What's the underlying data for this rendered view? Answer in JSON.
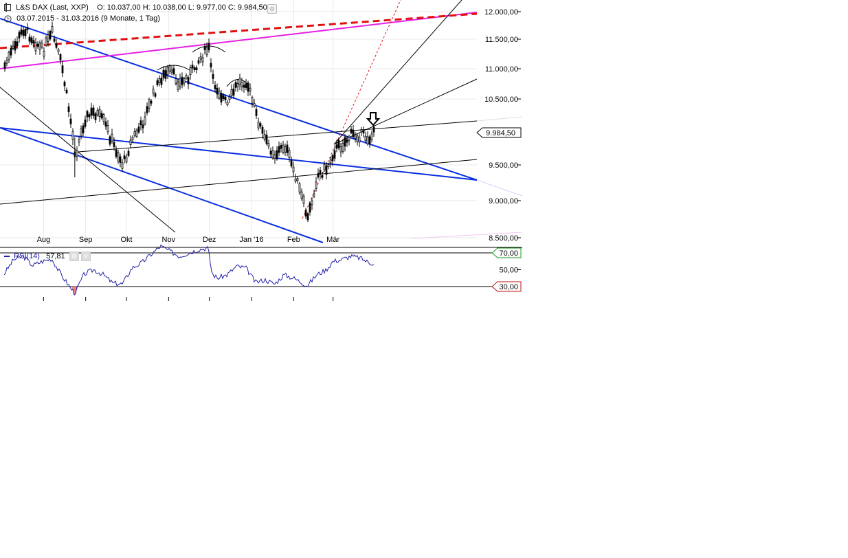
{
  "header": {
    "instrument": "L&S DAX (Last, XXP)",
    "ohlc": "O: 10.037,00  H: 10.038,00  L: 9.977,00  C: 9.984,50",
    "range": "03.07.2015 - 31.03.2016 (9 Monate, 1 Tag)"
  },
  "rsi_panel": {
    "name": "RSI(14)",
    "value": "57,81",
    "axis_labels": [
      "70,00",
      "50,00",
      "30,00"
    ]
  },
  "colors": {
    "candle": "#000000",
    "trend_blue": "#0a2ee0",
    "trend_magenta": "#e61ee6",
    "resistance_red": "#e01010",
    "rsi_line": "#1f1fa8",
    "rsi_fill": "#f08080",
    "grid": "#e8e8e8"
  },
  "icons": [
    "clock-icon",
    "gear-icon",
    "arrow-down-marker-icon"
  ],
  "chart_data": [
    {
      "type": "candlestick",
      "title": "L&S DAX (Last, XXP)",
      "price_labels": [
        "12.000,00",
        "11.500,00",
        "11.000,00",
        "10.500,00",
        "9.500,00",
        "9.000,00",
        "8.500,00"
      ],
      "y_ticks": [
        12000,
        11500,
        11000,
        10500,
        9500,
        9000,
        8500
      ],
      "x_tick_labels": [
        "Aug",
        "Sep",
        "Okt",
        "Nov",
        "Dez",
        "Jan '16",
        "Feb",
        "Mär"
      ],
      "ylim": [
        8500,
        12000
      ],
      "last_price_label": "9.984,50",
      "last_price": 9984.5,
      "series_outline": [
        [
          "2015-07-03",
          11050
        ],
        [
          "2015-07-10",
          11350
        ],
        [
          "2015-07-17",
          11700
        ],
        [
          "2015-07-24",
          11500
        ],
        [
          "2015-07-31",
          11300
        ],
        [
          "2015-08-07",
          11600
        ],
        [
          "2015-08-14",
          11050
        ],
        [
          "2015-08-21",
          10100
        ],
        [
          "2015-08-24",
          9650
        ],
        [
          "2015-08-31",
          10200
        ],
        [
          "2015-09-07",
          10300
        ],
        [
          "2015-09-14",
          10150
        ],
        [
          "2015-09-21",
          9800
        ],
        [
          "2015-09-28",
          9500
        ],
        [
          "2015-10-05",
          9900
        ],
        [
          "2015-10-12",
          10100
        ],
        [
          "2015-10-19",
          10500
        ],
        [
          "2015-10-26",
          10850
        ],
        [
          "2015-11-02",
          10950
        ],
        [
          "2015-11-09",
          10750
        ],
        [
          "2015-11-16",
          10900
        ],
        [
          "2015-11-23",
          11150
        ],
        [
          "2015-11-30",
          11350
        ],
        [
          "2015-12-03",
          10800
        ],
        [
          "2015-12-07",
          10650
        ],
        [
          "2015-12-14",
          10400
        ],
        [
          "2015-12-21",
          10750
        ],
        [
          "2015-12-28",
          10800
        ],
        [
          "2016-01-04",
          10250
        ],
        [
          "2016-01-11",
          9850
        ],
        [
          "2016-01-18",
          9650
        ],
        [
          "2016-01-25",
          9800
        ],
        [
          "2016-02-01",
          9400
        ],
        [
          "2016-02-08",
          8950
        ],
        [
          "2016-02-11",
          8750
        ],
        [
          "2016-02-18",
          9350
        ],
        [
          "2016-02-25",
          9450
        ],
        [
          "2016-03-01",
          9700
        ],
        [
          "2016-03-07",
          9800
        ],
        [
          "2016-03-14",
          9950
        ],
        [
          "2016-03-21",
          9950
        ],
        [
          "2016-03-28",
          9900
        ],
        [
          "2016-03-31",
          9984.5
        ]
      ]
    },
    {
      "type": "line",
      "title": "RSI(14)",
      "y_ticks": [
        70,
        50,
        30
      ],
      "ylim": [
        20,
        80
      ],
      "rsi_value": 57.81,
      "series": [
        {
          "name": "RSI(14)",
          "points": [
            [
              "2015-07-03",
              45
            ],
            [
              "2015-07-10",
              62
            ],
            [
              "2015-07-17",
              66
            ],
            [
              "2015-07-24",
              55
            ],
            [
              "2015-07-31",
              60
            ],
            [
              "2015-08-07",
              63
            ],
            [
              "2015-08-14",
              44
            ],
            [
              "2015-08-21",
              28
            ],
            [
              "2015-08-24",
              22
            ],
            [
              "2015-08-31",
              45
            ],
            [
              "2015-09-07",
              50
            ],
            [
              "2015-09-14",
              44
            ],
            [
              "2015-09-21",
              34
            ],
            [
              "2015-09-28",
              33
            ],
            [
              "2015-10-05",
              52
            ],
            [
              "2015-10-12",
              58
            ],
            [
              "2015-10-19",
              68
            ],
            [
              "2015-10-26",
              78
            ],
            [
              "2015-11-02",
              72
            ],
            [
              "2015-11-09",
              66
            ],
            [
              "2015-11-16",
              70
            ],
            [
              "2015-11-23",
              74
            ],
            [
              "2015-11-30",
              76
            ],
            [
              "2015-12-03",
              45
            ],
            [
              "2015-12-07",
              40
            ],
            [
              "2015-12-14",
              44
            ],
            [
              "2015-12-21",
              54
            ],
            [
              "2015-12-28",
              52
            ],
            [
              "2016-01-04",
              35
            ],
            [
              "2016-01-11",
              38
            ],
            [
              "2016-01-18",
              33
            ],
            [
              "2016-01-25",
              44
            ],
            [
              "2016-02-01",
              40
            ],
            [
              "2016-02-08",
              34
            ],
            [
              "2016-02-11",
              31
            ],
            [
              "2016-02-18",
              44
            ],
            [
              "2016-02-25",
              50
            ],
            [
              "2016-03-01",
              60
            ],
            [
              "2016-03-07",
              62
            ],
            [
              "2016-03-14",
              66
            ],
            [
              "2016-03-21",
              64
            ],
            [
              "2016-03-28",
              58
            ],
            [
              "2016-03-31",
              57.81
            ]
          ]
        }
      ]
    }
  ]
}
